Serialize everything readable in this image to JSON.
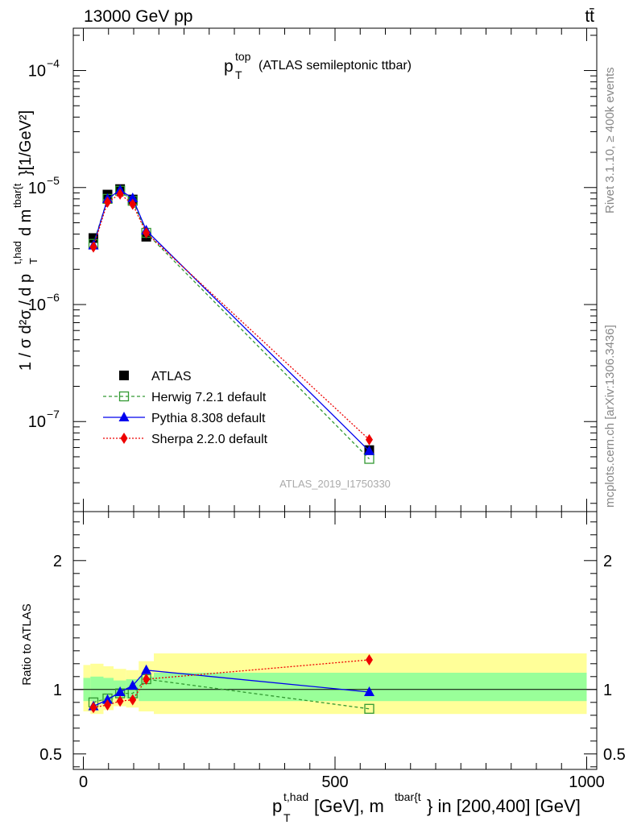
{
  "header": {
    "left": "13000 GeV pp",
    "right": "tt̄"
  },
  "side_text": {
    "rivet": "Rivet 3.1.10, ≥ 400k events",
    "mcplots": "mcplots.cern.ch [arXiv:1306.3436]"
  },
  "analysis_id": "ATLAS_2019_I1750330",
  "colors": {
    "atlas": "#000000",
    "herwig": "#339933",
    "pythia": "#0000ee",
    "sherpa": "#ee0000",
    "band_inner": "#99ff99",
    "band_outer": "#ffff99"
  },
  "chart_data": [
    {
      "type": "scatter",
      "title": {
        "main": "p",
        "sup": "top",
        "sub": "T",
        "rest": "(ATLAS semileptonic ttbar)"
      },
      "ylabel": "1 / σ d²σ / d p_T^{t,had} d m^{tbar{t}} [1/GeV²]",
      "yscale": "log",
      "xlim": [
        -20,
        1020
      ],
      "ylim": [
        1.7e-08,
        0.00023
      ],
      "yticks": [
        {
          "value": 1e-07,
          "base": "10",
          "exp": "−7"
        },
        {
          "value": 1e-06,
          "base": "10",
          "exp": "−6"
        },
        {
          "value": 1e-05,
          "base": "10",
          "exp": "−5"
        },
        {
          "value": 0.0001,
          "base": "10",
          "exp": "−4"
        }
      ],
      "legend_position": "center-left",
      "series": [
        {
          "name": "ATLAS",
          "x": [
            20,
            48,
            73,
            98,
            125,
            568
          ],
          "y": [
            3.7e-06,
            8.7e-06,
            9.7e-06,
            7.9e-06,
            3.8e-06,
            5.7e-08
          ]
        },
        {
          "name": "Herwig 7.2.1 default",
          "x": [
            20,
            48,
            73,
            98,
            125,
            568
          ],
          "y": [
            3.3e-06,
            8e-06,
            9.4e-06,
            7.7e-06,
            4.1e-06,
            4.8e-08
          ]
        },
        {
          "name": "Pythia 8.308 default",
          "x": [
            20,
            48,
            73,
            98,
            125,
            568
          ],
          "y": [
            3.2e-06,
            8e-06,
            9.5e-06,
            8.1e-06,
            4.3e-06,
            5.6e-08
          ]
        },
        {
          "name": "Sherpa 2.2.0 default",
          "x": [
            20,
            48,
            73,
            98,
            125,
            568
          ],
          "y": [
            3.1e-06,
            7.5e-06,
            8.8e-06,
            7.2e-06,
            4.1e-06,
            7e-08
          ]
        }
      ]
    },
    {
      "type": "line",
      "ylabel": "Ratio to ATLAS",
      "xlabel": {
        "p": "p",
        "sub": "T",
        "sup": "t,had",
        "mid": " [GeV], m",
        "sup2": "tbar{t",
        "end": "} in [200,400] [GeV]"
      },
      "xlim": [
        -20,
        1020
      ],
      "ylim": [
        0.38,
        2.38
      ],
      "xticks": [
        0,
        500,
        1000
      ],
      "yticks": [
        0.5,
        1,
        2
      ],
      "bands": [
        {
          "x0": 0,
          "x1": 14,
          "inner": [
            0.91,
            1.09
          ],
          "outer": [
            0.83,
            1.19
          ]
        },
        {
          "x0": 14,
          "x1": 40,
          "inner": [
            0.91,
            1.1
          ],
          "outer": [
            0.81,
            1.2
          ]
        },
        {
          "x0": 40,
          "x1": 60,
          "inner": [
            0.92,
            1.09
          ],
          "outer": [
            0.84,
            1.18
          ]
        },
        {
          "x0": 60,
          "x1": 85,
          "inner": [
            0.94,
            1.07
          ],
          "outer": [
            0.87,
            1.16
          ]
        },
        {
          "x0": 85,
          "x1": 110,
          "inner": [
            0.93,
            1.08
          ],
          "outer": [
            0.86,
            1.15
          ]
        },
        {
          "x0": 110,
          "x1": 140,
          "inner": [
            0.91,
            1.1
          ],
          "outer": [
            0.83,
            1.22
          ]
        },
        {
          "x0": 140,
          "x1": 1000,
          "inner": [
            0.91,
            1.13
          ],
          "outer": [
            0.81,
            1.28
          ]
        }
      ],
      "series": [
        {
          "name": "Herwig 7.2.1 default",
          "x": [
            20,
            48,
            73,
            98,
            125,
            568
          ],
          "y": [
            0.9,
            0.93,
            0.97,
            0.97,
            1.08,
            0.85
          ]
        },
        {
          "name": "Pythia 8.308 default",
          "x": [
            20,
            48,
            73,
            98,
            125,
            568
          ],
          "y": [
            0.87,
            0.92,
            0.98,
            1.03,
            1.15,
            0.98
          ]
        },
        {
          "name": "Sherpa 2.2.0 default",
          "x": [
            20,
            48,
            73,
            98,
            125,
            568
          ],
          "y": [
            0.86,
            0.88,
            0.91,
            0.92,
            1.08,
            1.23
          ]
        }
      ]
    }
  ]
}
